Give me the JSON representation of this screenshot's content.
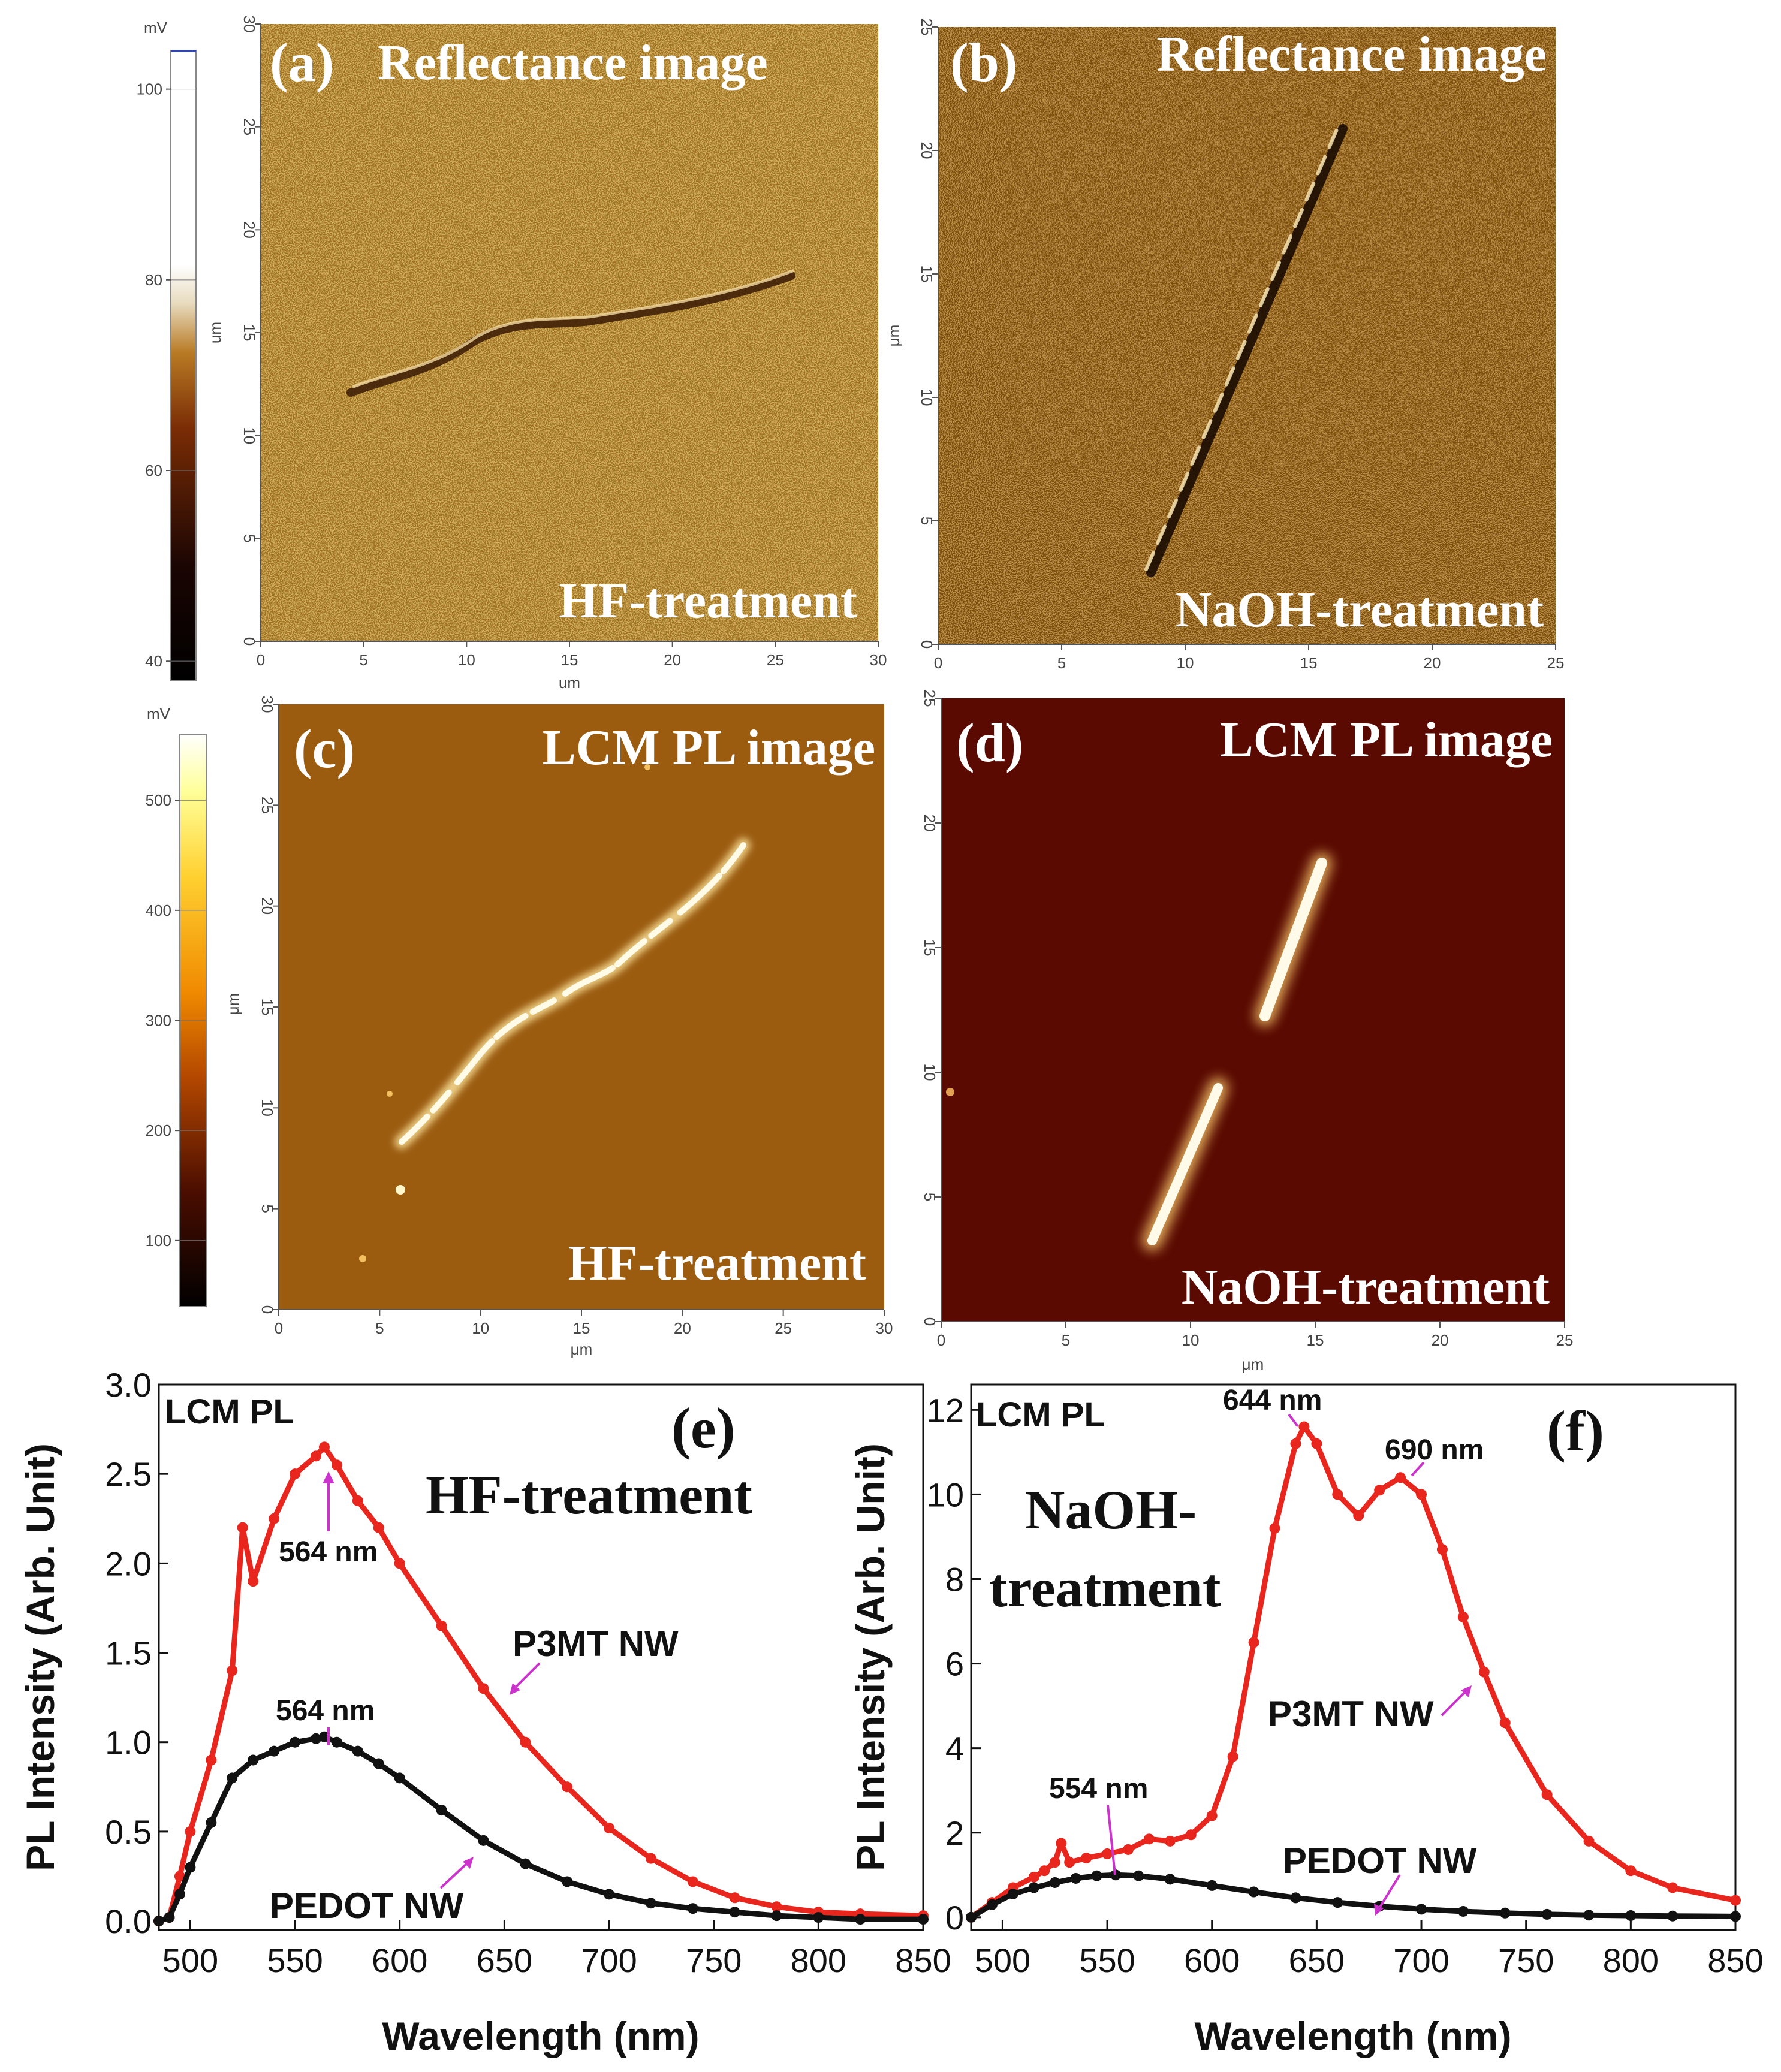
{
  "chart_data": [
    {
      "type": "heatmap",
      "panel_label": "(a)",
      "title": "Reflectance image",
      "annotation": "HF-treatment",
      "xlabel": "um",
      "ylabel": "um",
      "xticks": [
        "0",
        "5",
        "10",
        "15",
        "20",
        "25",
        "30"
      ],
      "yticks": [
        "0",
        "5",
        "10",
        "15",
        "20",
        "25",
        "30"
      ],
      "xlim": [
        0,
        30
      ],
      "ylim": [
        0,
        30
      ],
      "colorbar": {
        "unit": "mV",
        "ticks": [
          "40",
          "60",
          "80",
          "100"
        ],
        "range": [
          38,
          104
        ]
      }
    },
    {
      "type": "heatmap",
      "panel_label": "(b)",
      "title": "Reflectance image",
      "annotation": "NaOH-treatment",
      "xlabel": "",
      "ylabel": "μm",
      "xticks": [
        "0",
        "5",
        "10",
        "15",
        "20",
        "25"
      ],
      "yticks": [
        "0",
        "5",
        "10",
        "15",
        "20",
        "25"
      ],
      "xlim": [
        0,
        25
      ],
      "ylim": [
        0,
        25
      ]
    },
    {
      "type": "heatmap",
      "panel_label": "(c)",
      "title": "LCM PL image",
      "annotation": "HF-treatment",
      "xlabel": "μm",
      "ylabel": "μm",
      "xticks": [
        "0",
        "5",
        "10",
        "15",
        "20",
        "25",
        "30"
      ],
      "yticks": [
        "0",
        "5",
        "10",
        "15",
        "20",
        "25",
        "30"
      ],
      "xlim": [
        0,
        30
      ],
      "ylim": [
        0,
        30
      ],
      "colorbar": {
        "unit": "mV",
        "ticks": [
          "100",
          "200",
          "300",
          "400",
          "500"
        ],
        "range": [
          40,
          560
        ]
      }
    },
    {
      "type": "heatmap",
      "panel_label": "(d)",
      "title": "LCM PL image",
      "annotation": "NaOH-treatment",
      "xlabel": "μm",
      "ylabel": "",
      "xticks": [
        "0",
        "5",
        "10",
        "15",
        "20",
        "25"
      ],
      "yticks": [
        "0",
        "5",
        "10",
        "15",
        "20",
        "25"
      ],
      "xlim": [
        0,
        25
      ],
      "ylim": [
        0,
        25
      ]
    },
    {
      "type": "line",
      "panel_label": "(e)",
      "corner_label": "LCM PL",
      "title": "HF-treatment",
      "xlabel": "Wavelength (nm)",
      "ylabel": "PL Intensity (Arb. Unit)",
      "xlim": [
        485,
        850
      ],
      "ylim": [
        -0.05,
        3.0
      ],
      "xticks": [
        "500",
        "550",
        "600",
        "650",
        "700",
        "750",
        "800",
        "850"
      ],
      "yticks": [
        "0.0",
        "0.5",
        "1.0",
        "1.5",
        "2.0",
        "2.5",
        "3.0"
      ],
      "series": [
        {
          "name": "P3MT NW",
          "color": "#e8261e",
          "x": [
            485,
            490,
            495,
            500,
            510,
            520,
            525,
            530,
            540,
            550,
            560,
            564,
            570,
            580,
            590,
            600,
            620,
            640,
            660,
            680,
            700,
            720,
            740,
            760,
            780,
            800,
            820,
            850
          ],
          "y": [
            0.0,
            0.02,
            0.25,
            0.5,
            0.9,
            1.4,
            2.2,
            1.9,
            2.25,
            2.5,
            2.6,
            2.65,
            2.55,
            2.35,
            2.2,
            2.0,
            1.65,
            1.3,
            1.0,
            0.75,
            0.52,
            0.35,
            0.22,
            0.13,
            0.08,
            0.05,
            0.04,
            0.03
          ]
        },
        {
          "name": "PEDOT NW",
          "color": "#111111",
          "x": [
            485,
            490,
            495,
            500,
            510,
            520,
            530,
            540,
            550,
            560,
            564,
            570,
            580,
            590,
            600,
            620,
            640,
            660,
            680,
            700,
            720,
            740,
            760,
            780,
            800,
            820,
            850
          ],
          "y": [
            0.0,
            0.02,
            0.15,
            0.3,
            0.55,
            0.8,
            0.9,
            0.95,
            1.0,
            1.02,
            1.03,
            1.0,
            0.95,
            0.88,
            0.8,
            0.62,
            0.45,
            0.32,
            0.22,
            0.15,
            0.1,
            0.07,
            0.05,
            0.03,
            0.02,
            0.01,
            0.01
          ]
        }
      ],
      "annotations": [
        {
          "text": "564 nm",
          "x": 564,
          "y": 2.65
        },
        {
          "text": "564 nm",
          "x": 564,
          "y": 1.03
        }
      ]
    },
    {
      "type": "line",
      "panel_label": "(f)",
      "corner_label": "LCM PL",
      "title_lines": [
        "NaOH-",
        "treatment"
      ],
      "xlabel": "Wavelength (nm)",
      "ylabel": "PL Intensity (Arb. Unit)",
      "xlim": [
        485,
        850
      ],
      "ylim": [
        -0.3,
        12.6
      ],
      "xticks": [
        "500",
        "550",
        "600",
        "650",
        "700",
        "750",
        "800",
        "850"
      ],
      "yticks": [
        "0",
        "2",
        "4",
        "6",
        "8",
        "10",
        "12"
      ],
      "series": [
        {
          "name": "P3MT NW",
          "color": "#e8261e",
          "x": [
            485,
            495,
            505,
            515,
            520,
            525,
            528,
            532,
            540,
            550,
            560,
            570,
            580,
            590,
            600,
            610,
            620,
            630,
            640,
            644,
            650,
            660,
            670,
            680,
            690,
            700,
            710,
            720,
            730,
            740,
            760,
            780,
            800,
            820,
            850
          ],
          "y": [
            0.0,
            0.35,
            0.7,
            0.95,
            1.1,
            1.3,
            1.75,
            1.3,
            1.4,
            1.5,
            1.6,
            1.85,
            1.8,
            1.95,
            2.4,
            3.8,
            6.5,
            9.2,
            11.2,
            11.6,
            11.2,
            10.0,
            9.5,
            10.1,
            10.4,
            10.0,
            8.7,
            7.1,
            5.8,
            4.6,
            2.9,
            1.8,
            1.1,
            0.7,
            0.4
          ]
        },
        {
          "name": "PEDOT NW",
          "color": "#111111",
          "x": [
            485,
            495,
            505,
            515,
            525,
            535,
            545,
            554,
            565,
            580,
            600,
            620,
            640,
            660,
            680,
            700,
            720,
            740,
            760,
            780,
            800,
            820,
            850
          ],
          "y": [
            0.0,
            0.3,
            0.55,
            0.7,
            0.82,
            0.92,
            0.98,
            1.0,
            0.98,
            0.9,
            0.75,
            0.6,
            0.46,
            0.35,
            0.26,
            0.19,
            0.14,
            0.1,
            0.07,
            0.05,
            0.04,
            0.03,
            0.02
          ]
        }
      ],
      "annotations": [
        {
          "text": "554 nm",
          "x": 554,
          "y": 1.0
        },
        {
          "text": "644 nm",
          "x": 644,
          "y": 11.6
        },
        {
          "text": "690 nm",
          "x": 690,
          "y": 10.4
        }
      ]
    }
  ]
}
